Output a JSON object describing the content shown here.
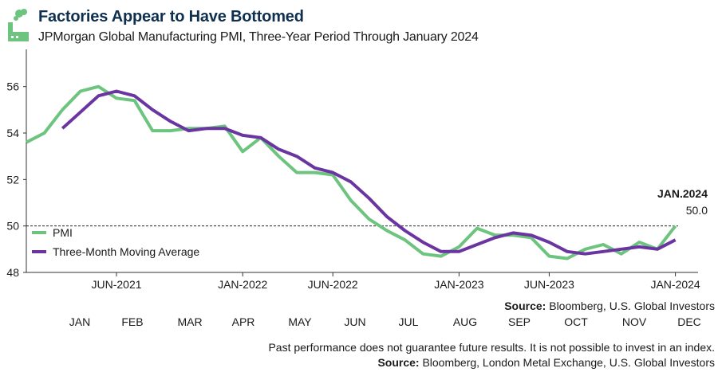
{
  "header": {
    "title": "Factories Appear to Have Bottomed",
    "subtitle": "JPMorgan Global Manufacturing PMI, Three-Year Period Through January 2024"
  },
  "chart_data": {
    "type": "line",
    "title": "Factories Appear to Have Bottomed",
    "subtitle": "JPMorgan Global Manufacturing PMI, Three-Year Period Through January 2024",
    "x": [
      "2021-01",
      "2021-02",
      "2021-03",
      "2021-04",
      "2021-05",
      "2021-06",
      "2021-07",
      "2021-08",
      "2021-09",
      "2021-10",
      "2021-11",
      "2021-12",
      "2022-01",
      "2022-02",
      "2022-03",
      "2022-04",
      "2022-05",
      "2022-06",
      "2022-07",
      "2022-08",
      "2022-09",
      "2022-10",
      "2022-11",
      "2022-12",
      "2023-01",
      "2023-02",
      "2023-03",
      "2023-04",
      "2023-05",
      "2023-06",
      "2023-07",
      "2023-08",
      "2023-09",
      "2023-10",
      "2023-11",
      "2023-12",
      "2024-01"
    ],
    "xticks": [
      {
        "at": "2021-06",
        "label": "JUN-2021"
      },
      {
        "at": "2022-01",
        "label": "JAN-2022"
      },
      {
        "at": "2022-06",
        "label": "JUN-2022"
      },
      {
        "at": "2023-01",
        "label": "JAN-2023"
      },
      {
        "at": "2023-06",
        "label": "JUN-2023"
      },
      {
        "at": "2024-01",
        "label": "JAN-2024"
      }
    ],
    "yticks": [
      48,
      50,
      52,
      54,
      56
    ],
    "ylim": [
      48,
      57.6
    ],
    "reference_line": 50,
    "grid": false,
    "legend_position": "bottom-left",
    "series": [
      {
        "name": "PMI",
        "color": "#6cc47e",
        "values": [
          53.6,
          54.0,
          55.0,
          55.8,
          56.0,
          55.5,
          55.4,
          54.1,
          54.1,
          54.2,
          54.2,
          54.3,
          53.2,
          53.8,
          53.0,
          52.3,
          52.3,
          52.2,
          51.1,
          50.3,
          49.8,
          49.4,
          48.8,
          48.7,
          49.1,
          49.9,
          49.6,
          49.6,
          49.5,
          48.7,
          48.6,
          49.0,
          49.2,
          48.8,
          49.3,
          49.0,
          50.0
        ]
      },
      {
        "name": "Three-Month Moving Average",
        "color": "#6a35a1",
        "values": [
          null,
          null,
          54.2,
          54.9,
          55.6,
          55.8,
          55.6,
          55.0,
          54.5,
          54.1,
          54.2,
          54.2,
          53.9,
          53.8,
          53.3,
          53.0,
          52.5,
          52.3,
          51.9,
          51.2,
          50.4,
          49.8,
          49.3,
          48.9,
          48.9,
          49.2,
          49.5,
          49.7,
          49.6,
          49.3,
          48.9,
          48.8,
          48.9,
          49.0,
          49.1,
          49.0,
          49.4
        ]
      }
    ],
    "annotation": {
      "label": "JAN.2024",
      "value_label": "50.0",
      "at": "2024-01",
      "value": 50.0
    }
  },
  "source_top": {
    "bold": "Source:",
    "text": " Bloomberg, U.S. Global Investors"
  },
  "month_labels": [
    "JAN",
    "FEB",
    "MAR",
    "APR",
    "MAY",
    "JUN",
    "JUL",
    "AUG",
    "SEP",
    "OCT",
    "NOV",
    "DEC"
  ],
  "disclaimer": "Past performance does not guarantee future results. It is not possible to invest in an index.",
  "source_bottom": {
    "bold": "Source:",
    "text": " Bloomberg, London Metal Exchange, U.S. Global Investors"
  },
  "colors": {
    "title": "#0f2f4f",
    "pmi": "#6cc47e",
    "ma": "#6a35a1",
    "logo": "#6cc47e"
  }
}
